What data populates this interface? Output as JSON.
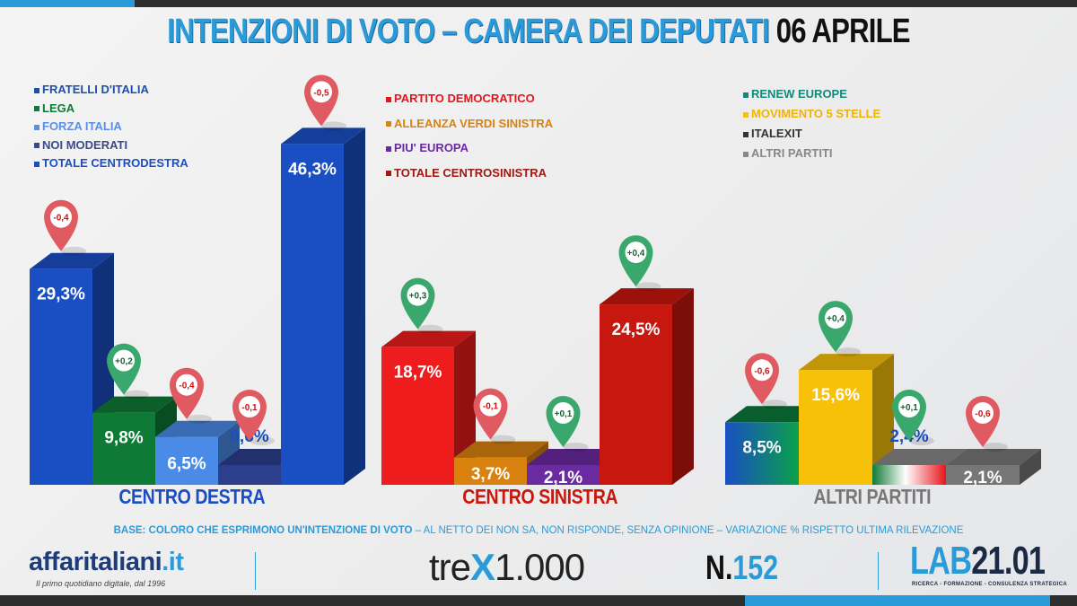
{
  "title": {
    "main": "INTENZIONI DI VOTO – CAMERA DEI DEPUTATI",
    "date": "06 APRILE"
  },
  "chart_data": {
    "type": "bar",
    "title": "INTENZIONI DI VOTO – CAMERA DEI DEPUTATI 06 APRILE",
    "unit": "%",
    "groups": [
      {
        "name": "CENTRO DESTRA",
        "color": "#1a4fc4",
        "bars": [
          {
            "name": "FRATELLI D'ITALIA",
            "value": 29.3,
            "label": "29,3%",
            "change": "-0,4",
            "color": "#1a4fc4"
          },
          {
            "name": "LEGA",
            "value": 9.8,
            "label": "9,8%",
            "change": "+0,2",
            "color": "#0f7a35"
          },
          {
            "name": "FORZA ITALIA",
            "value": 6.5,
            "label": "6,5%",
            "change": "-0,4",
            "color": "#4a8be8"
          },
          {
            "name": "NOI MODERATI",
            "value": 0.6,
            "label": "0,6%",
            "change": "-0,1",
            "color": "#2c3e8c"
          },
          {
            "name": "TOTALE CENTRODESTRA",
            "value": 46.3,
            "label": "46,3%",
            "change": "-0,5",
            "color": "#1a4fc4"
          }
        ]
      },
      {
        "name": "CENTRO SINISTRA",
        "color": "#c8170e",
        "bars": [
          {
            "name": "PARTITO DEMOCRATICO",
            "value": 18.7,
            "label": "18,7%",
            "change": "+0,3",
            "color": "#ee1c1c"
          },
          {
            "name": "ALLEANZA VERDI SINISTRA",
            "value": 3.7,
            "label": "3,7%",
            "change": "-0,1",
            "color": "#d9820f"
          },
          {
            "name": "PIU' EUROPA",
            "value": 2.1,
            "label": "2,1%",
            "change": "+0,1",
            "color": "#6a2aa0"
          },
          {
            "name": "TOTALE CENTROSINISTRA",
            "value": 24.5,
            "label": "24,5%",
            "change": "+0,4",
            "color": "#c8170e"
          }
        ]
      },
      {
        "name": "ALTRI PARTITI",
        "color": "#777777",
        "bars": [
          {
            "name": "RENEW EUROPE",
            "value": 8.5,
            "label": "8,5%",
            "change": "-0,6",
            "color": "#1a4fc4"
          },
          {
            "name": "MOVIMENTO 5 STELLE",
            "value": 15.6,
            "label": "15,6%",
            "change": "+0,4",
            "color": "#f7c10a"
          },
          {
            "name": "ITALEXIT",
            "value": 2.4,
            "label": "2,4%",
            "change": "+0,1",
            "color": "#ffffff"
          },
          {
            "name": "ALTRI PARTITI",
            "value": 2.1,
            "label": "2,1%",
            "change": "-0,6",
            "color": "#777777"
          }
        ]
      }
    ],
    "legend_placement": "top-left of each group",
    "grid": false
  },
  "legend_colors": {
    "0": [
      "#1e4fa8",
      "#0f7a35",
      "#5b8fe0",
      "#3b4a8a",
      "#1a4fc4"
    ],
    "1": [
      "#e8141b",
      "#d9820f",
      "#6a2aa0",
      "#a01812"
    ],
    "2": [
      "#0f8a7a",
      "#f7c10a",
      "#333333",
      "#888888"
    ]
  },
  "legend_text_colors": {
    "0": [
      "#1e4fa8",
      "#0f7a35",
      "#5b8fe0",
      "#3b4a8a",
      "#1a4fc4"
    ],
    "1": [
      "#e8141b",
      "#d9820f",
      "#6a2aa0",
      "#a01812"
    ],
    "2": [
      "#0f8a7a",
      "#f0b400",
      "#333333",
      "#888888"
    ]
  },
  "footer": {
    "base_bold": "BASE: COLORO CHE ESPRIMONO UN'INTENZIONE DI VOTO",
    "base_rest": " – AL NETTO DEI NON SA, NON RISPONDE, SENZA OPINIONE – VARIAZIONE % RISPETTO ULTIMA RILEVAZIONE",
    "affaritaliani": "affaritaliani",
    "affaritaliani_tld": ".it",
    "affaritaliani_tagline": "Il primo quotidiano digitale, dal 1996",
    "trex_a": "tre",
    "trex_x": "X",
    "trex_b": "1.000",
    "issue_prefix": "N.",
    "issue_number": "152",
    "lab_a": "LAB",
    "lab_b": "21.01",
    "lab_tagline": "RICERCA - FORMAZIONE - CONSULENZA STRATEGICA"
  }
}
